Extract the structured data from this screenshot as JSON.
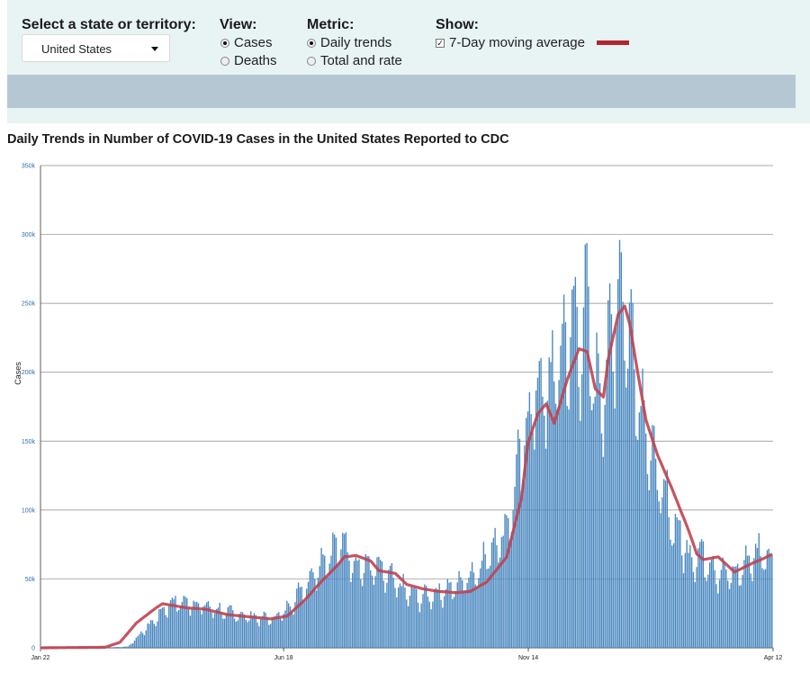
{
  "controls": {
    "state_label": "Select a state or territory:",
    "state_value": "United States",
    "view_label": "View:",
    "view_options": [
      "Cases",
      "Deaths"
    ],
    "view_selected": "Cases",
    "metric_label": "Metric:",
    "metric_options": [
      "Daily trends",
      "Total and rate"
    ],
    "metric_selected": "Daily trends",
    "show_label": "Show:",
    "show_option": "7-Day moving average",
    "show_checked": true,
    "moving_avg_color": "#b22530"
  },
  "chart_data": {
    "type": "bar",
    "title": "Daily Trends in Number of COVID-19 Cases in the United States Reported to CDC",
    "ylabel": "Cases",
    "xlabel": "",
    "ylim": [
      0,
      350000
    ],
    "yticks": [
      0,
      50000,
      100000,
      150000,
      200000,
      250000,
      300000,
      350000
    ],
    "ytick_labels": [
      "0",
      "50k",
      "100k",
      "150k",
      "200k",
      "250k",
      "300k",
      "350k"
    ],
    "xticks": [
      "Jan 22",
      "Jun 18",
      "Nov 14",
      "Apr 12"
    ],
    "x_start": "2020-01-22",
    "x_end": "2021-04-12",
    "bar_color": "#4a88c0",
    "line_color": "#c0434f",
    "grid": true,
    "series": [
      {
        "name": "Cases",
        "kind": "bar",
        "x": [
          "2020-03-01",
          "2020-03-15",
          "2020-04-01",
          "2020-04-10",
          "2020-04-24",
          "2020-05-15",
          "2020-06-01",
          "2020-06-10",
          "2020-06-18",
          "2020-07-01",
          "2020-07-10",
          "2020-07-20",
          "2020-07-25",
          "2020-08-01",
          "2020-08-15",
          "2020-09-01",
          "2020-09-10",
          "2020-09-25",
          "2020-10-01",
          "2020-10-15",
          "2020-10-25",
          "2020-11-01",
          "2020-11-10",
          "2020-11-14",
          "2020-11-20",
          "2020-11-25",
          "2020-12-01",
          "2020-12-10",
          "2020-12-15",
          "2020-12-20",
          "2020-12-25",
          "2021-01-02",
          "2021-01-08",
          "2021-01-15",
          "2021-01-25",
          "2021-02-01",
          "2021-02-10",
          "2021-02-20",
          "2021-03-01",
          "2021-03-10",
          "2021-03-20",
          "2021-04-01",
          "2021-04-07",
          "2021-04-12"
        ],
        "y": [
          100,
          900,
          21000,
          33000,
          32000,
          25000,
          22000,
          21000,
          25000,
          45000,
          61000,
          72000,
          76000,
          60000,
          56000,
          40000,
          36000,
          42000,
          44000,
          57000,
          76000,
          86000,
          137000,
          164000,
          190000,
          181000,
          200000,
          230000,
          228000,
          239000,
          184000,
          202000,
          266000,
          228000,
          160000,
          120000,
          93000,
          67000,
          67000,
          55000,
          52000,
          67000,
          69000,
          64000
        ]
      },
      {
        "name": "7-Day moving average",
        "kind": "line",
        "x": [
          "2020-01-22",
          "2020-03-01",
          "2020-03-10",
          "2020-03-20",
          "2020-04-01",
          "2020-04-05",
          "2020-04-10",
          "2020-04-20",
          "2020-05-01",
          "2020-05-15",
          "2020-06-01",
          "2020-06-10",
          "2020-06-20",
          "2020-07-01",
          "2020-07-10",
          "2020-07-20",
          "2020-07-25",
          "2020-08-01",
          "2020-08-10",
          "2020-08-15",
          "2020-08-25",
          "2020-09-01",
          "2020-09-10",
          "2020-09-20",
          "2020-10-01",
          "2020-10-10",
          "2020-10-20",
          "2020-11-01",
          "2020-11-10",
          "2020-11-14",
          "2020-11-20",
          "2020-11-25",
          "2020-11-30",
          "2020-12-08",
          "2020-12-15",
          "2020-12-20",
          "2020-12-25",
          "2020-12-30",
          "2021-01-02",
          "2021-01-08",
          "2021-01-12",
          "2021-01-15",
          "2021-01-20",
          "2021-01-25",
          "2021-02-01",
          "2021-02-10",
          "2021-02-20",
          "2021-02-25",
          "2021-03-01",
          "2021-03-10",
          "2021-03-20",
          "2021-04-01",
          "2021-04-07",
          "2021-04-12"
        ],
        "y": [
          0,
          400,
          4000,
          18000,
          29000,
          32000,
          31000,
          29000,
          28000,
          24000,
          22000,
          21000,
          23000,
          35000,
          47000,
          59000,
          66000,
          67000,
          63000,
          56000,
          54000,
          46000,
          43000,
          41000,
          40000,
          41000,
          48000,
          66000,
          109000,
          149000,
          170000,
          177000,
          163000,
          195000,
          217000,
          215000,
          188000,
          182000,
          210000,
          242000,
          248000,
          235000,
          199000,
          165000,
          140000,
          115000,
          85000,
          68000,
          64000,
          66000,
          55000,
          62000,
          65000,
          68000
        ]
      }
    ]
  }
}
